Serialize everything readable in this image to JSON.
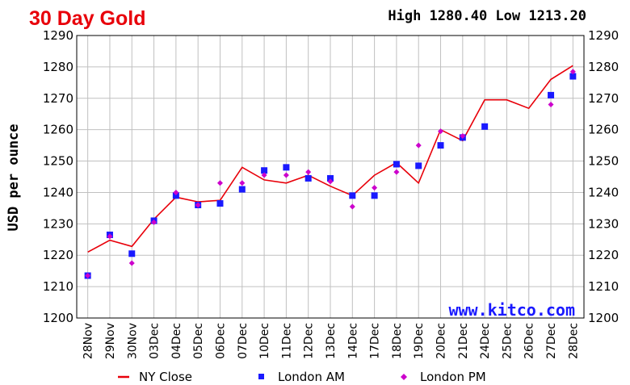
{
  "header": {
    "title": "30 Day Gold",
    "high_low": "High 1280.40 Low 1213.20"
  },
  "watermark": "www.kitco.com",
  "colors": {
    "title": "#e8000a",
    "ny_close": "#e8000a",
    "london_am": "#1a1aff",
    "london_pm": "#cc00cc",
    "grid": "#c0c0c0",
    "brand": "#1a1aff"
  },
  "chart_data": {
    "type": "line",
    "title": "30 Day Gold",
    "ylabel": "USD per ounce",
    "xlabel": "",
    "ylim": [
      1200,
      1290
    ],
    "yticks": [
      1200,
      1210,
      1220,
      1230,
      1240,
      1250,
      1260,
      1270,
      1280,
      1290
    ],
    "grid": true,
    "legend_position": "bottom",
    "categories": [
      "28Nov",
      "29Nov",
      "30Nov",
      "03Dec",
      "04Dec",
      "05Dec",
      "06Dec",
      "07Dec",
      "10Dec",
      "11Dec",
      "12Dec",
      "13Dec",
      "14Dec",
      "17Dec",
      "18Dec",
      "19Dec",
      "20Dec",
      "21Dec",
      "24Dec",
      "25Dec",
      "26Dec",
      "27Dec",
      "28Dec"
    ],
    "series": [
      {
        "name": "NY Close",
        "style": "line",
        "values": [
          1221.0,
          1224.8,
          1222.8,
          1231.5,
          1238.5,
          1237.0,
          1237.5,
          1248.0,
          1244.0,
          1243.0,
          1245.5,
          1242.0,
          1239.0,
          1245.5,
          1249.5,
          1243.0,
          1260.0,
          1256.5,
          1269.5,
          1269.5,
          1266.8,
          1276.0,
          1280.4
        ]
      },
      {
        "name": "London AM",
        "style": "square",
        "values": [
          1213.5,
          1226.5,
          1220.5,
          1231.0,
          1239.0,
          1236.0,
          1236.5,
          1241.0,
          1247.0,
          1248.0,
          1244.5,
          1244.5,
          1239.0,
          1239.0,
          1249.0,
          1248.5,
          1255.0,
          1257.5,
          1261.0,
          null,
          null,
          1271.0,
          1277.0
        ]
      },
      {
        "name": "London PM",
        "style": "diamond",
        "values": [
          1213.5,
          1226.0,
          1217.5,
          1230.5,
          1240.0,
          1236.0,
          1243.0,
          1243.0,
          1245.5,
          1245.5,
          1246.5,
          1243.5,
          1235.5,
          1241.5,
          1246.5,
          1255.0,
          1259.5,
          1258.0,
          null,
          null,
          null,
          1268.0,
          1278.5
        ]
      }
    ]
  }
}
